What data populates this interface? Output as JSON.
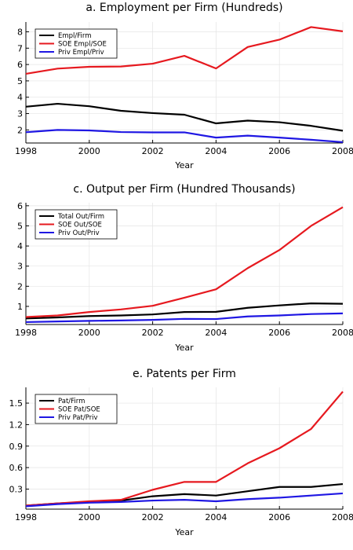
{
  "chart_data": [
    {
      "type": "line",
      "title": "a. Employment per Firm (Hundreds)",
      "xlabel": "Year",
      "ylabel": "",
      "x": [
        1998,
        1999,
        2000,
        2001,
        2002,
        2003,
        2004,
        2005,
        2006,
        2007,
        2008
      ],
      "xlim": [
        1998,
        2008
      ],
      "ylim": [
        1.2,
        8.6
      ],
      "xticks": [
        1998,
        2000,
        2002,
        2004,
        2006,
        2008
      ],
      "yticks": [
        2,
        3,
        4,
        5,
        6,
        7,
        8
      ],
      "ytick_labels": [
        "2",
        "3",
        "4",
        "5",
        "6",
        "7",
        "8"
      ],
      "grid": true,
      "legend_position": "top-left",
      "series": [
        {
          "name": "Empl/Firm",
          "color": "#000000",
          "values": [
            3.42,
            3.6,
            3.45,
            3.17,
            3.03,
            2.93,
            2.4,
            2.57,
            2.47,
            2.25,
            1.95
          ]
        },
        {
          "name": "SOE Empl/SOE",
          "color": "#e6191f",
          "values": [
            5.43,
            5.75,
            5.86,
            5.88,
            6.05,
            6.53,
            5.76,
            7.07,
            7.52,
            8.29,
            8.03
          ]
        },
        {
          "name": "Priv Empl/Priv",
          "color": "#1f17e3",
          "values": [
            1.86,
            2.0,
            1.97,
            1.87,
            1.85,
            1.85,
            1.53,
            1.65,
            1.53,
            1.4,
            1.25
          ]
        }
      ]
    },
    {
      "type": "line",
      "title": "c. Output per Firm (Hundred Thousands)",
      "xlabel": "Year",
      "ylabel": "",
      "x": [
        1998,
        1999,
        2000,
        2001,
        2002,
        2003,
        2004,
        2005,
        2006,
        2007,
        2008
      ],
      "xlim": [
        1998,
        2008
      ],
      "ylim": [
        0.1,
        6.15
      ],
      "xticks": [
        1998,
        2000,
        2002,
        2004,
        2006,
        2008
      ],
      "yticks": [
        1,
        2,
        3,
        4,
        5,
        6
      ],
      "ytick_labels": [
        "1",
        "2",
        "3",
        "4",
        "5",
        "6"
      ],
      "grid": true,
      "legend_position": "top-left",
      "series": [
        {
          "name": "Total Out/Firm",
          "color": "#000000",
          "values": [
            0.4,
            0.45,
            0.52,
            0.55,
            0.6,
            0.72,
            0.73,
            0.93,
            1.05,
            1.15,
            1.13
          ]
        },
        {
          "name": "SOE Out/SOE",
          "color": "#e6191f",
          "values": [
            0.47,
            0.55,
            0.72,
            0.85,
            1.03,
            1.43,
            1.85,
            2.9,
            3.8,
            5.0,
            5.93
          ]
        },
        {
          "name": "Priv Out/Priv",
          "color": "#1f17e3",
          "values": [
            0.22,
            0.25,
            0.28,
            0.3,
            0.33,
            0.38,
            0.37,
            0.5,
            0.55,
            0.62,
            0.65
          ]
        }
      ]
    },
    {
      "type": "line",
      "title": "e. Patents per Firm",
      "xlabel": "Year",
      "ylabel": "",
      "x": [
        1998,
        1999,
        2000,
        2001,
        2002,
        2003,
        2004,
        2005,
        2006,
        2007,
        2008
      ],
      "xlim": [
        1998,
        2008
      ],
      "ylim": [
        0.02,
        1.72
      ],
      "xticks": [
        1998,
        2000,
        2002,
        2004,
        2006,
        2008
      ],
      "yticks": [
        0.3,
        0.6,
        0.9,
        1.2,
        1.5
      ],
      "ytick_labels": [
        "0.3",
        "0.6",
        "0.9",
        "1.2",
        "1.5"
      ],
      "grid": true,
      "legend_position": "top-left",
      "series": [
        {
          "name": "Pat/Firm",
          "color": "#000000",
          "values": [
            0.07,
            0.1,
            0.12,
            0.14,
            0.2,
            0.23,
            0.21,
            0.27,
            0.33,
            0.33,
            0.37
          ]
        },
        {
          "name": "SOE Pat/SOE",
          "color": "#e6191f",
          "values": [
            0.07,
            0.1,
            0.13,
            0.15,
            0.29,
            0.4,
            0.4,
            0.66,
            0.87,
            1.14,
            1.66
          ]
        },
        {
          "name": "Priv Pat/Priv",
          "color": "#1f17e3",
          "values": [
            0.06,
            0.09,
            0.11,
            0.12,
            0.14,
            0.15,
            0.13,
            0.16,
            0.18,
            0.21,
            0.24
          ]
        }
      ]
    }
  ]
}
